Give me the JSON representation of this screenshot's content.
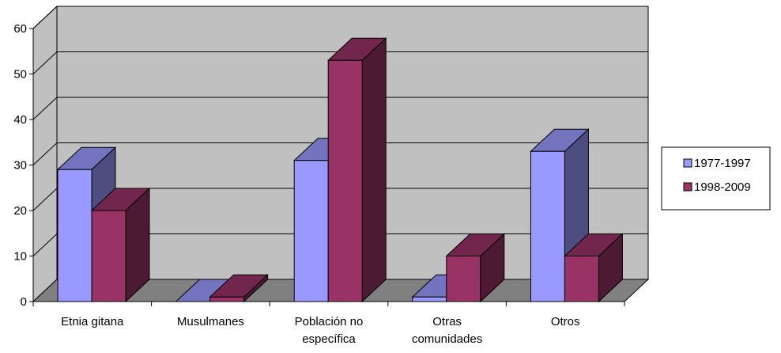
{
  "chart_data": {
    "type": "bar",
    "style": "3d-clustered-column",
    "categories": [
      [
        "Etnia gitana"
      ],
      [
        "Musulmanes"
      ],
      [
        "Población no",
        "específica"
      ],
      [
        "Otras",
        "comunidades"
      ],
      [
        "Otros"
      ]
    ],
    "series": [
      {
        "name": "1977-1997",
        "values": [
          29,
          0,
          31,
          1,
          33
        ],
        "color": "#9999ff"
      },
      {
        "name": "1998-2009",
        "values": [
          20,
          1,
          53,
          10,
          10
        ],
        "color": "#993366"
      }
    ],
    "ylim": [
      0,
      60
    ],
    "yticks": [
      "0",
      "10",
      "20",
      "30",
      "40",
      "50",
      "60"
    ],
    "grid": true,
    "legend": "right",
    "colors": {
      "wall": "#c0c0c0",
      "floor": "#808080"
    }
  }
}
